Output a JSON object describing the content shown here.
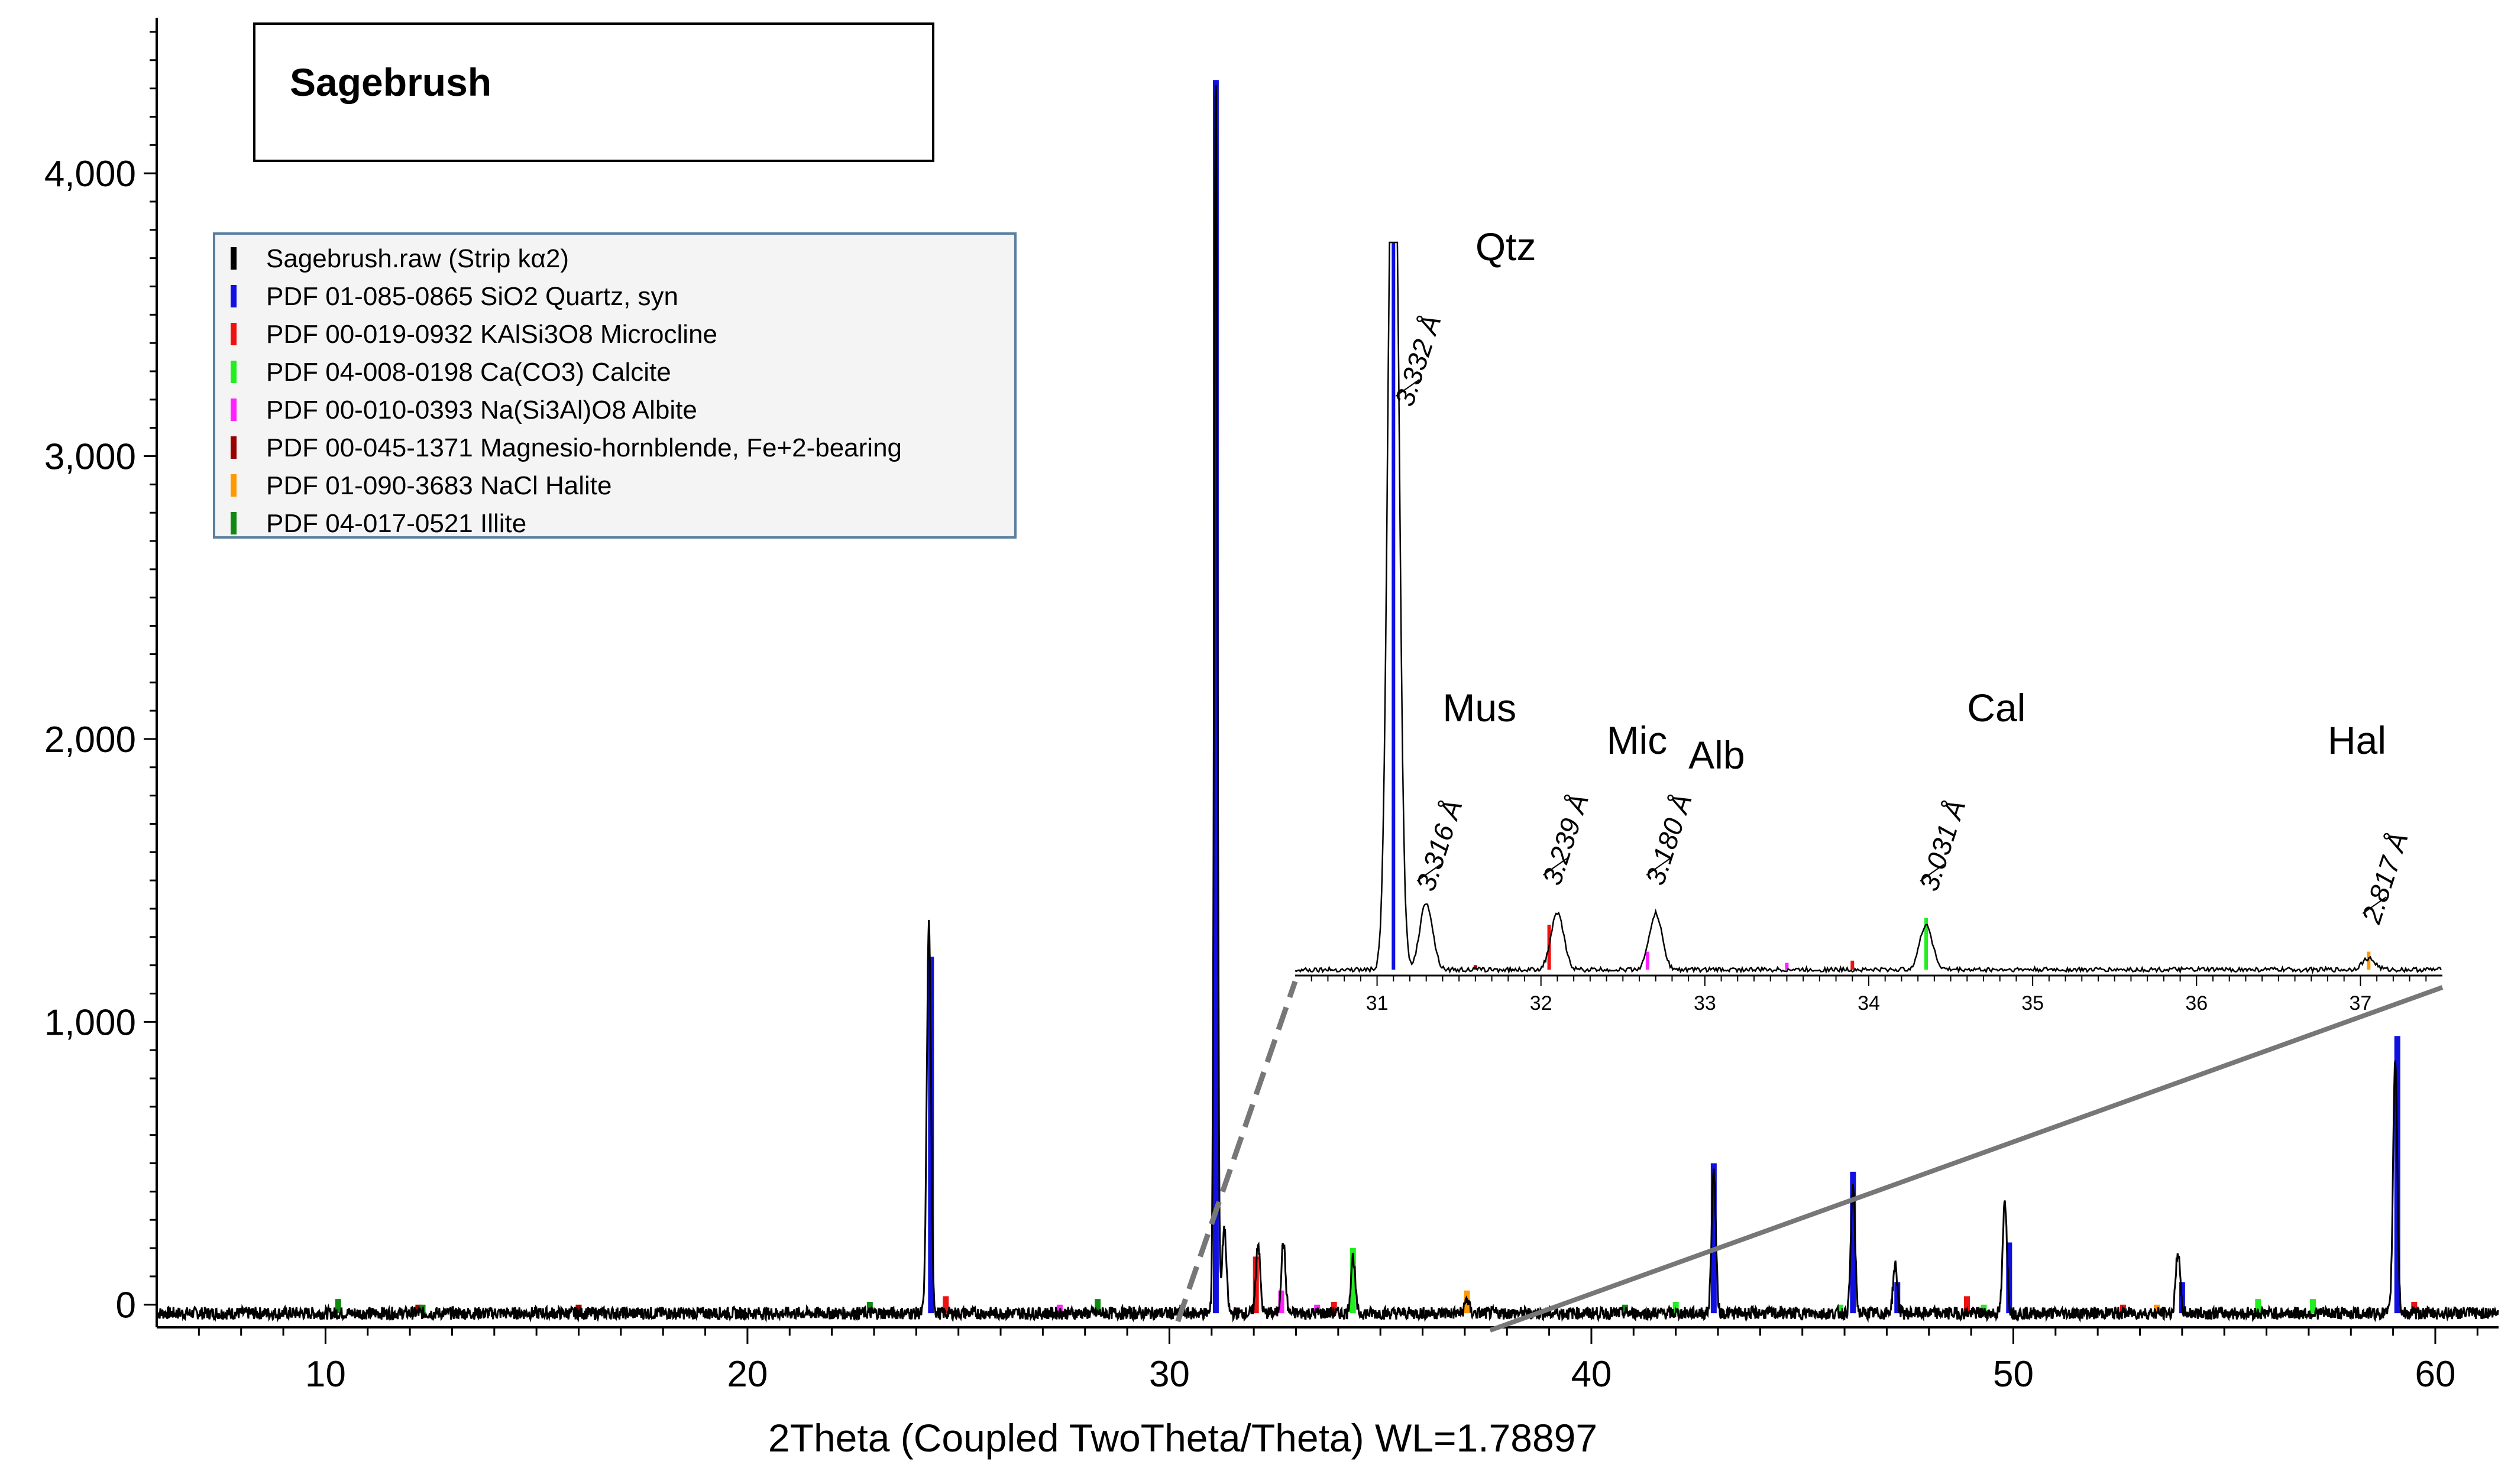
{
  "chart_data": {
    "type": "line",
    "title": "Sagebrush",
    "xlabel": "2Theta (Coupled TwoTheta/Theta) WL=1.78897",
    "ylabel": "",
    "xlim": [
      6,
      61.5
    ],
    "ylim": [
      -80,
      4550
    ],
    "x_ticks": [
      10,
      20,
      30,
      40,
      50,
      60
    ],
    "x_tick_labels": [
      "10",
      "20",
      "30",
      "40",
      "50",
      "60"
    ],
    "y_ticks": [
      0,
      1000,
      2000,
      3000,
      4000
    ],
    "y_tick_labels": [
      "0",
      "1,000",
      "2,000",
      "3,000",
      "4,000"
    ],
    "legend_position": "top-left",
    "legend": [
      {
        "label": "Sagebrush.raw (Strip kα2)",
        "color": "#000000"
      },
      {
        "label": "PDF 01-085-0865 SiO2 Quartz, syn",
        "color": "#1010e0"
      },
      {
        "label": "PDF 00-019-0932 KAlSi3O8 Microcline",
        "color": "#ee1111"
      },
      {
        "label": "PDF 04-008-0198 Ca(CO3) Calcite",
        "color": "#22ee22"
      },
      {
        "label": "PDF 00-010-0393 Na(Si3Al)O8 Albite",
        "color": "#ff22ff"
      },
      {
        "label": "PDF 00-045-1371 Magnesio-hornblende, Fe+2-bearing",
        "color": "#990000"
      },
      {
        "label": "PDF 01-090-3683 NaCl Halite",
        "color": "#ff9900"
      },
      {
        "label": "PDF 04-017-0521 Illite",
        "color": "#118811"
      }
    ],
    "series": [
      {
        "name": "Sagebrush.raw (Strip kα2)",
        "color": "#000000",
        "baseline": -30,
        "peaks": [
          {
            "x": 24.3,
            "y": 1380
          },
          {
            "x": 31.1,
            "y": 4380
          },
          {
            "x": 31.3,
            "y": 300
          },
          {
            "x": 32.1,
            "y": 250
          },
          {
            "x": 32.7,
            "y": 250
          },
          {
            "x": 34.35,
            "y": 200
          },
          {
            "x": 37.05,
            "y": 50
          },
          {
            "x": 42.9,
            "y": 500
          },
          {
            "x": 46.2,
            "y": 450
          },
          {
            "x": 47.2,
            "y": 170
          },
          {
            "x": 49.8,
            "y": 400
          },
          {
            "x": 53.9,
            "y": 220
          },
          {
            "x": 59.05,
            "y": 900
          }
        ]
      },
      {
        "name": "PDF 01-085-0865 SiO2 Quartz, syn",
        "color": "#1010e0",
        "sticks": [
          [
            24.35,
            1260
          ],
          [
            31.1,
            4360
          ],
          [
            42.9,
            530
          ],
          [
            46.2,
            500
          ],
          [
            47.25,
            110
          ],
          [
            49.9,
            250
          ],
          [
            54.0,
            110
          ],
          [
            59.1,
            980
          ]
        ]
      },
      {
        "name": "PDF 00-019-0932 KAlSi3O8 Microcline",
        "color": "#ee1111",
        "sticks": [
          [
            24.7,
            60
          ],
          [
            32.05,
            200
          ],
          [
            33.9,
            40
          ],
          [
            48.9,
            60
          ],
          [
            52.6,
            30
          ],
          [
            59.5,
            40
          ]
        ]
      },
      {
        "name": "PDF 04-008-0198 Ca(CO3) Calcite",
        "color": "#22ee22",
        "sticks": [
          [
            34.35,
            230
          ],
          [
            42.0,
            40
          ],
          [
            45.9,
            30
          ],
          [
            49.3,
            30
          ],
          [
            55.8,
            50
          ],
          [
            57.1,
            50
          ]
        ]
      },
      {
        "name": "PDF 00-010-0393 Na(Si3Al)O8 Albite",
        "color": "#ff22ff",
        "sticks": [
          [
            27.4,
            30
          ],
          [
            32.65,
            80
          ],
          [
            33.5,
            30
          ]
        ]
      },
      {
        "name": "PDF 00-045-1371 Magnesio-hornblende, Fe+2-bearing",
        "color": "#990000",
        "sticks": [
          [
            12.2,
            30
          ],
          [
            16.0,
            30
          ],
          [
            31.6,
            20
          ]
        ]
      },
      {
        "name": "PDF 01-090-3683 NaCl Halite",
        "color": "#ff9900",
        "sticks": [
          [
            37.05,
            80
          ],
          [
            53.4,
            30
          ]
        ]
      },
      {
        "name": "PDF 04-017-0521 Illite",
        "color": "#118811",
        "sticks": [
          [
            10.3,
            50
          ],
          [
            12.3,
            30
          ],
          [
            22.9,
            40
          ],
          [
            28.3,
            50
          ],
          [
            30.3,
            30
          ],
          [
            40.8,
            30
          ]
        ]
      }
    ],
    "inset": {
      "xlim": [
        30.5,
        37.5
      ],
      "x_ticks": [
        31,
        32,
        33,
        34,
        35,
        36,
        37
      ],
      "x_tick_labels": [
        "31",
        "32",
        "33",
        "34",
        "35",
        "36",
        "37"
      ],
      "phase_labels": [
        {
          "text": "Qtz",
          "x": 31.6
        },
        {
          "text": "Mus",
          "x": 31.4
        },
        {
          "text": "Mic",
          "x": 32.4
        },
        {
          "text": "Alb",
          "x": 32.9
        },
        {
          "text": "Cal",
          "x": 34.6
        },
        {
          "text": "Hal",
          "x": 36.8
        }
      ],
      "d_spacings": [
        {
          "text": "3.332 Å",
          "x": 31.15
        },
        {
          "text": "3.316 Å",
          "x": 31.28
        },
        {
          "text": "3.239 Å",
          "x": 32.05
        },
        {
          "text": "3.180 Å",
          "x": 32.68
        },
        {
          "text": "3.031 Å",
          "x": 34.35
        },
        {
          "text": "2.817 Å",
          "x": 37.05
        }
      ],
      "zoom_range": [
        30.2,
        37.6
      ]
    }
  }
}
